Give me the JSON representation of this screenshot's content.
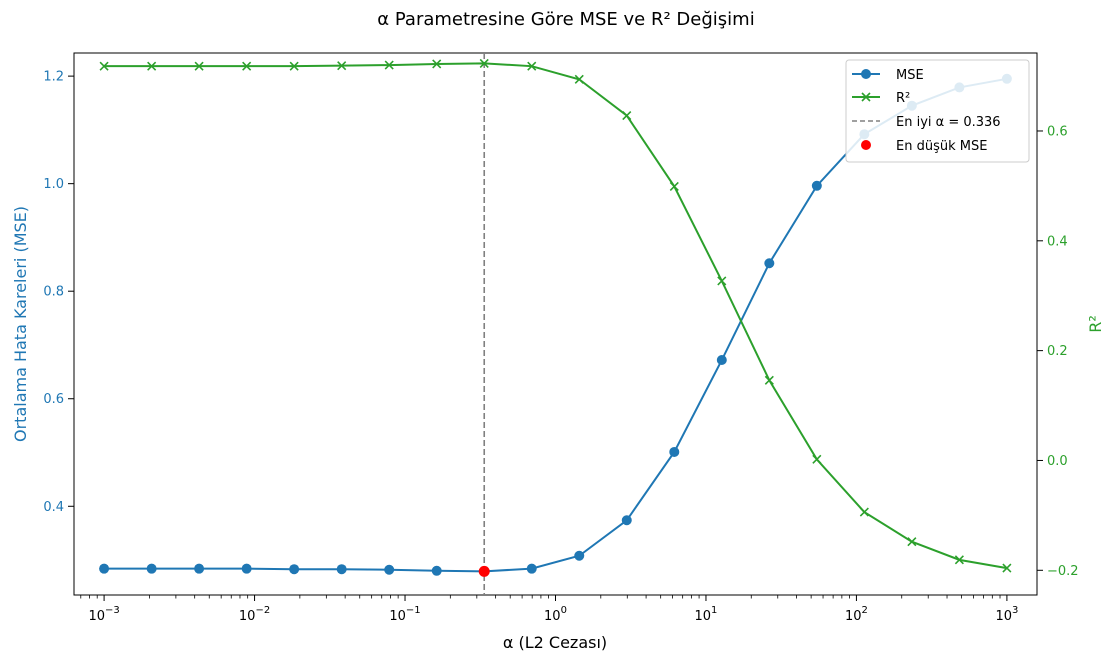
{
  "chart_data": {
    "type": "line",
    "title": "α Parametresine Göre MSE ve R² Değişimi",
    "xlabel": "α (L2 Cezası)",
    "ylabel_left": "Ortalama Hata Kareleri (MSE)",
    "ylabel_right": "R²",
    "x_scale": "log",
    "xlim": [
      0.000631,
      1585
    ],
    "ylim_left": [
      0.235,
      1.243
    ],
    "ylim_right": [
      -0.245,
      0.742
    ],
    "x_tick_exponents": [
      -3,
      -2,
      -1,
      0,
      1,
      2,
      3
    ],
    "y_ticks_left": [
      "0.4",
      "0.6",
      "0.8",
      "1.0",
      "1.2"
    ],
    "y_ticks_right": [
      "−0.2",
      "0.0",
      "0.2",
      "0.4",
      "0.6"
    ],
    "x": [
      0.001,
      0.00207,
      0.00428,
      0.00886,
      0.01833,
      0.03793,
      0.07848,
      0.16238,
      0.33598,
      0.69519,
      1.43845,
      2.97635,
      6.15848,
      12.74275,
      26.36651,
      54.55595,
      112.88379,
      233.57215,
      483.29302,
      1000
    ],
    "series": [
      {
        "name": "MSE",
        "axis": "left",
        "marker": "circle",
        "color": "#1f77b4",
        "values": [
          0.284,
          0.284,
          0.284,
          0.284,
          0.283,
          0.283,
          0.282,
          0.28,
          0.279,
          0.284,
          0.308,
          0.374,
          0.501,
          0.672,
          0.852,
          0.996,
          1.092,
          1.145,
          1.179,
          1.195
        ]
      },
      {
        "name": "R²",
        "axis": "right",
        "marker": "x",
        "color": "#2ca02c",
        "values": [
          0.718,
          0.718,
          0.718,
          0.718,
          0.718,
          0.719,
          0.72,
          0.722,
          0.723,
          0.718,
          0.694,
          0.628,
          0.499,
          0.327,
          0.146,
          0.002,
          -0.094,
          -0.148,
          -0.181,
          -0.196
        ]
      }
    ],
    "best": {
      "label": "En iyi α = 0.336",
      "alpha": 0.336,
      "color": "#808080"
    },
    "min_point": {
      "label": "En düşük MSE",
      "x": 0.336,
      "y": 0.279,
      "color": "#ff0000"
    },
    "legend_position": "top-right",
    "grid": false
  }
}
